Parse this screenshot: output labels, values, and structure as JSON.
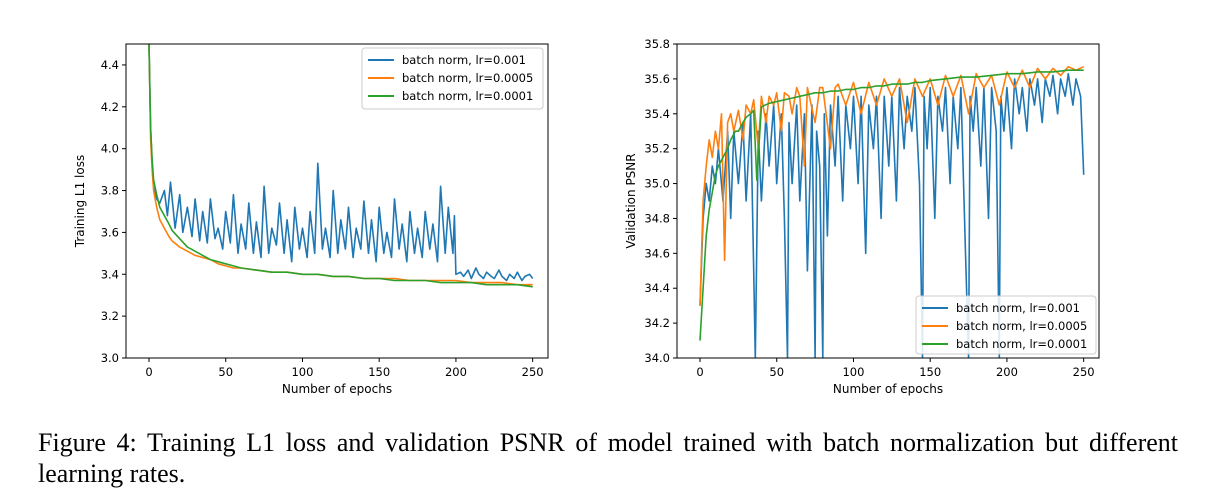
{
  "figure": {
    "caption": "Figure 4: Training L1 loss and validation PSNR of model trained with batch normalization but different learning rates."
  },
  "chart_data": [
    {
      "type": "line",
      "title": "",
      "xlabel": "Number of epochs",
      "ylabel": "Training L1 loss",
      "xlim": [
        -15,
        260
      ],
      "ylim": [
        3.0,
        4.5
      ],
      "xticks": [
        0,
        50,
        100,
        150,
        200,
        250
      ],
      "yticks": [
        3.0,
        3.2,
        3.4,
        3.6,
        3.8,
        4.0,
        4.2,
        4.4
      ],
      "xtick_labels": [
        "0",
        "50",
        "100",
        "150",
        "200",
        "250"
      ],
      "ytick_labels": [
        "3.0",
        "3.2",
        "3.4",
        "3.6",
        "3.8",
        "4.0",
        "4.2",
        "4.4"
      ],
      "grid": false,
      "legend_position": "top-right",
      "series": [
        {
          "name": "batch norm, lr=0.001",
          "color": "#1f77b4",
          "x": [
            0,
            1,
            2,
            3,
            5,
            7,
            10,
            12,
            14,
            17,
            20,
            22,
            25,
            28,
            30,
            33,
            35,
            38,
            40,
            43,
            45,
            48,
            50,
            53,
            55,
            58,
            60,
            63,
            65,
            68,
            70,
            73,
            75,
            78,
            80,
            83,
            85,
            88,
            90,
            93,
            95,
            98,
            100,
            103,
            105,
            108,
            110,
            113,
            115,
            118,
            120,
            123,
            125,
            128,
            130,
            133,
            135,
            138,
            140,
            143,
            145,
            148,
            150,
            153,
            155,
            158,
            160,
            163,
            165,
            168,
            170,
            173,
            175,
            178,
            180,
            183,
            185,
            188,
            190,
            193,
            195,
            198,
            199,
            200,
            203,
            205,
            208,
            210,
            213,
            215,
            218,
            220,
            223,
            225,
            228,
            230,
            233,
            235,
            238,
            240,
            243,
            245,
            248,
            250
          ],
          "y": [
            4.5,
            4.1,
            3.93,
            3.82,
            3.76,
            3.74,
            3.8,
            3.68,
            3.84,
            3.62,
            3.78,
            3.6,
            3.72,
            3.58,
            3.76,
            3.56,
            3.7,
            3.55,
            3.76,
            3.57,
            3.62,
            3.52,
            3.7,
            3.55,
            3.78,
            3.5,
            3.64,
            3.52,
            3.74,
            3.5,
            3.65,
            3.48,
            3.82,
            3.5,
            3.62,
            3.54,
            3.74,
            3.5,
            3.66,
            3.46,
            3.72,
            3.52,
            3.62,
            3.48,
            3.7,
            3.5,
            3.93,
            3.52,
            3.62,
            3.48,
            3.8,
            3.5,
            3.66,
            3.52,
            3.72,
            3.48,
            3.62,
            3.52,
            3.75,
            3.5,
            3.66,
            3.46,
            3.72,
            3.5,
            3.6,
            3.48,
            3.76,
            3.52,
            3.64,
            3.46,
            3.7,
            3.5,
            3.62,
            3.48,
            3.7,
            3.52,
            3.64,
            3.46,
            3.82,
            3.5,
            3.72,
            3.5,
            3.68,
            3.4,
            3.41,
            3.39,
            3.42,
            3.38,
            3.43,
            3.4,
            3.38,
            3.41,
            3.39,
            3.38,
            3.42,
            3.39,
            3.37,
            3.4,
            3.38,
            3.41,
            3.37,
            3.39,
            3.4,
            3.38
          ]
        },
        {
          "name": "batch norm, lr=0.0005",
          "color": "#ff7f0e",
          "x": [
            0,
            1,
            2,
            3,
            5,
            7,
            10,
            13,
            15,
            20,
            25,
            30,
            35,
            40,
            45,
            50,
            55,
            60,
            70,
            80,
            90,
            100,
            110,
            120,
            130,
            140,
            150,
            160,
            170,
            180,
            190,
            200,
            210,
            220,
            230,
            240,
            250
          ],
          "y": [
            4.5,
            4.05,
            3.9,
            3.8,
            3.72,
            3.66,
            3.62,
            3.58,
            3.56,
            3.53,
            3.51,
            3.49,
            3.48,
            3.47,
            3.45,
            3.44,
            3.43,
            3.43,
            3.42,
            3.41,
            3.41,
            3.4,
            3.4,
            3.39,
            3.39,
            3.38,
            3.38,
            3.38,
            3.37,
            3.37,
            3.37,
            3.37,
            3.36,
            3.36,
            3.36,
            3.35,
            3.35
          ]
        },
        {
          "name": "batch norm, lr=0.0001",
          "color": "#2ca02c",
          "x": [
            0,
            1,
            2,
            3,
            5,
            7,
            10,
            13,
            15,
            20,
            25,
            30,
            35,
            40,
            45,
            50,
            55,
            60,
            70,
            80,
            90,
            100,
            110,
            120,
            130,
            140,
            150,
            160,
            170,
            180,
            190,
            200,
            210,
            220,
            230,
            240,
            250
          ],
          "y": [
            4.5,
            4.1,
            3.95,
            3.85,
            3.78,
            3.72,
            3.68,
            3.64,
            3.61,
            3.57,
            3.53,
            3.51,
            3.49,
            3.47,
            3.46,
            3.45,
            3.44,
            3.43,
            3.42,
            3.41,
            3.41,
            3.4,
            3.4,
            3.39,
            3.39,
            3.38,
            3.38,
            3.37,
            3.37,
            3.37,
            3.36,
            3.36,
            3.36,
            3.35,
            3.35,
            3.35,
            3.34
          ]
        }
      ]
    },
    {
      "type": "line",
      "title": "",
      "xlabel": "Number of epochs",
      "ylabel": "Validation PSNR",
      "xlim": [
        -15,
        260
      ],
      "ylim": [
        34.0,
        35.8
      ],
      "xticks": [
        0,
        50,
        100,
        150,
        200,
        250
      ],
      "yticks": [
        34.0,
        34.2,
        34.4,
        34.6,
        34.8,
        35.0,
        35.2,
        35.4,
        35.6,
        35.8
      ],
      "xtick_labels": [
        "0",
        "50",
        "100",
        "150",
        "200",
        "250"
      ],
      "ytick_labels": [
        "34.0",
        "34.2",
        "34.4",
        "34.6",
        "34.8",
        "35.0",
        "35.2",
        "35.4",
        "35.6",
        "35.8"
      ],
      "grid": false,
      "legend_position": "lower-right",
      "series": [
        {
          "name": "batch norm, lr=0.001",
          "color": "#1f77b4",
          "x": [
            0,
            2,
            4,
            6,
            8,
            10,
            12,
            15,
            18,
            20,
            22,
            25,
            28,
            30,
            33,
            35,
            36,
            38,
            40,
            43,
            45,
            48,
            50,
            53,
            55,
            57,
            58,
            60,
            63,
            65,
            68,
            70,
            73,
            75,
            76,
            78,
            80,
            81,
            83,
            85,
            88,
            90,
            93,
            95,
            98,
            100,
            103,
            105,
            108,
            110,
            113,
            115,
            118,
            120,
            123,
            125,
            128,
            130,
            133,
            135,
            138,
            140,
            143,
            145,
            146,
            148,
            150,
            153,
            155,
            158,
            160,
            163,
            165,
            168,
            170,
            173,
            175,
            176,
            178,
            180,
            183,
            185,
            188,
            190,
            193,
            195,
            196,
            198,
            200,
            203,
            205,
            208,
            210,
            213,
            215,
            218,
            220,
            223,
            225,
            228,
            230,
            233,
            235,
            238,
            240,
            243,
            245,
            248,
            250
          ],
          "y": [
            34.3,
            34.8,
            35.0,
            34.9,
            35.1,
            35.0,
            35.2,
            34.9,
            35.3,
            34.8,
            35.3,
            35.0,
            35.35,
            34.9,
            35.4,
            34.5,
            34.0,
            35.3,
            34.9,
            35.4,
            35.1,
            35.45,
            35.0,
            35.4,
            34.8,
            34.0,
            35.35,
            35.0,
            35.45,
            34.9,
            35.4,
            34.5,
            35.45,
            34.0,
            35.3,
            35.1,
            34.0,
            35.4,
            34.7,
            35.45,
            35.1,
            35.5,
            34.9,
            35.45,
            35.2,
            35.5,
            35.0,
            35.5,
            34.6,
            35.45,
            35.2,
            35.5,
            34.8,
            35.5,
            35.1,
            35.5,
            34.9,
            35.55,
            35.2,
            35.5,
            35.3,
            35.55,
            35.0,
            34.0,
            35.5,
            35.2,
            35.55,
            34.8,
            35.5,
            35.3,
            35.55,
            35.0,
            35.5,
            35.2,
            35.55,
            34.6,
            34.0,
            35.5,
            35.3,
            35.55,
            35.1,
            35.55,
            34.8,
            35.55,
            35.3,
            34.0,
            35.5,
            35.3,
            35.55,
            35.2,
            35.6,
            35.4,
            35.55,
            35.3,
            35.6,
            35.45,
            35.6,
            35.35,
            35.6,
            35.5,
            35.62,
            35.4,
            35.6,
            35.5,
            35.63,
            35.45,
            35.6,
            35.5,
            35.05
          ]
        },
        {
          "name": "batch norm, lr=0.0005",
          "color": "#ff7f0e",
          "x": [
            0,
            2,
            4,
            6,
            8,
            10,
            12,
            14,
            16,
            18,
            20,
            22,
            25,
            28,
            30,
            33,
            35,
            38,
            40,
            43,
            45,
            48,
            50,
            53,
            55,
            58,
            60,
            63,
            65,
            68,
            70,
            75,
            78,
            80,
            85,
            88,
            90,
            95,
            100,
            105,
            110,
            115,
            120,
            125,
            130,
            135,
            140,
            145,
            150,
            155,
            160,
            165,
            170,
            175,
            180,
            185,
            190,
            195,
            200,
            205,
            210,
            215,
            220,
            225,
            230,
            235,
            240,
            245,
            250
          ],
          "y": [
            34.3,
            34.9,
            35.1,
            35.25,
            35.15,
            35.3,
            35.2,
            35.4,
            34.56,
            35.35,
            35.4,
            35.3,
            35.42,
            35.25,
            35.45,
            35.4,
            35.48,
            35.2,
            35.5,
            35.35,
            35.5,
            35.45,
            35.52,
            35.3,
            35.52,
            35.5,
            35.4,
            35.55,
            35.5,
            35.1,
            35.55,
            35.35,
            35.55,
            35.55,
            35.2,
            35.55,
            35.57,
            35.45,
            35.58,
            35.4,
            35.58,
            35.45,
            35.6,
            35.5,
            35.6,
            35.35,
            35.6,
            35.5,
            35.6,
            35.45,
            35.62,
            35.5,
            35.62,
            35.4,
            35.63,
            35.55,
            35.62,
            35.45,
            35.64,
            35.55,
            35.65,
            35.55,
            35.66,
            35.6,
            35.66,
            35.62,
            35.67,
            35.65,
            35.67
          ]
        },
        {
          "name": "batch norm, lr=0.0001",
          "color": "#2ca02c",
          "x": [
            0,
            2,
            4,
            6,
            8,
            10,
            12,
            15,
            18,
            20,
            23,
            25,
            28,
            30,
            33,
            35,
            37,
            40,
            45,
            50,
            55,
            60,
            65,
            70,
            75,
            80,
            85,
            90,
            95,
            100,
            105,
            110,
            115,
            120,
            125,
            130,
            135,
            140,
            145,
            150,
            160,
            170,
            180,
            190,
            200,
            210,
            220,
            230,
            240,
            250
          ],
          "y": [
            34.1,
            34.4,
            34.7,
            34.85,
            34.95,
            35.05,
            35.1,
            35.15,
            35.2,
            35.25,
            35.3,
            35.3,
            35.35,
            35.38,
            35.4,
            35.42,
            35.02,
            35.44,
            35.46,
            35.47,
            35.48,
            35.49,
            35.5,
            35.51,
            35.52,
            35.52,
            35.53,
            35.53,
            35.54,
            35.54,
            35.55,
            35.55,
            35.56,
            35.56,
            35.57,
            35.57,
            35.57,
            35.58,
            35.58,
            35.59,
            35.6,
            35.61,
            35.61,
            35.62,
            35.63,
            35.63,
            35.64,
            35.64,
            35.65,
            35.65
          ]
        }
      ]
    }
  ]
}
